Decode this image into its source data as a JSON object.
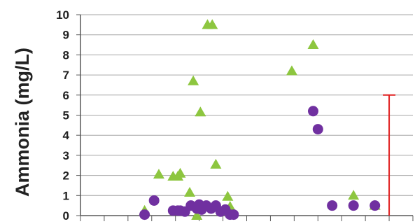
{
  "chart_data": {
    "type": "scatter",
    "title": "",
    "xlabel": "",
    "ylabel": "Ammonia (mg/L)",
    "ylim": [
      0,
      10
    ],
    "xlim": [
      0,
      14
    ],
    "y_ticks": [
      "0",
      "1",
      "2",
      "3",
      "4",
      "5",
      "6",
      "7",
      "8",
      "9",
      "10"
    ],
    "grid": true,
    "legend": "none",
    "series": [
      {
        "marker": "triangle",
        "color": "#8dc63f",
        "points": [
          [
            2.7,
            0.25
          ],
          [
            3.3,
            2.05
          ],
          [
            3.9,
            1.95
          ],
          [
            4.1,
            1.95
          ],
          [
            4.2,
            2.1
          ],
          [
            4.6,
            1.15
          ],
          [
            4.75,
            6.7
          ],
          [
            4.9,
            0.0
          ],
          [
            5.05,
            5.15
          ],
          [
            5.35,
            9.5
          ],
          [
            5.55,
            9.5
          ],
          [
            5.7,
            2.55
          ],
          [
            6.2,
            0.95
          ],
          [
            6.3,
            0.45
          ],
          [
            8.9,
            7.2
          ],
          [
            9.8,
            8.5
          ],
          [
            11.5,
            1.0
          ],
          [
            12.4,
            0.5
          ]
        ]
      },
      {
        "marker": "circle",
        "color": "#7030a0",
        "points": [
          [
            2.7,
            0.05
          ],
          [
            3.1,
            0.75
          ],
          [
            3.9,
            0.25
          ],
          [
            4.1,
            0.25
          ],
          [
            4.2,
            0.25
          ],
          [
            4.4,
            0.2
          ],
          [
            4.65,
            0.5
          ],
          [
            4.9,
            0.35
          ],
          [
            5.0,
            0.55
          ],
          [
            5.1,
            0.3
          ],
          [
            5.3,
            0.5
          ],
          [
            5.5,
            0.35
          ],
          [
            5.7,
            0.5
          ],
          [
            5.9,
            0.2
          ],
          [
            6.1,
            0.3
          ],
          [
            6.3,
            0.05
          ],
          [
            6.45,
            0.05
          ],
          [
            9.8,
            5.2
          ],
          [
            10.0,
            4.3
          ],
          [
            10.6,
            0.5
          ],
          [
            11.5,
            0.5
          ],
          [
            12.4,
            0.5
          ]
        ]
      }
    ],
    "error_bar": {
      "x": 13.0,
      "low": 0,
      "high": 6,
      "color": "#e02020"
    }
  }
}
